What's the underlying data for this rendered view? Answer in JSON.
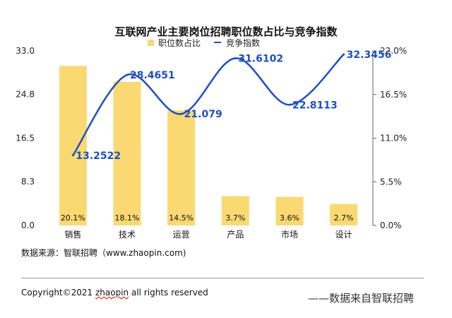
{
  "chart_data": {
    "type": "bar+line",
    "title": "互联网产业主要岗位招聘职位数占比与竞争指数",
    "categories": [
      "销售",
      "技术",
      "运营",
      "产品",
      "市场",
      "设计"
    ],
    "series": [
      {
        "name": "职位数占比",
        "type": "bar",
        "axis": "right",
        "values": [
          20.1,
          18.1,
          14.5,
          3.7,
          3.6,
          2.7
        ],
        "labels": [
          "20.1%",
          "18.1%",
          "14.5%",
          "3.7%",
          "3.6%",
          "2.7%"
        ],
        "color": "#FAD973"
      },
      {
        "name": "竞争指数",
        "type": "line",
        "axis": "left",
        "smooth": true,
        "values": [
          13.2522,
          28.4651,
          21.079,
          31.6102,
          22.8113,
          32.3456
        ],
        "labels": [
          "13.2522",
          "28.4651",
          "21.079",
          "31.6102",
          "22.8113",
          "32.3456"
        ],
        "color": "#1F4FBF"
      }
    ],
    "left_axis": {
      "ylim": [
        0,
        33.0
      ],
      "ticks": [
        0.0,
        8.3,
        16.5,
        24.8,
        33.0
      ],
      "tick_labels": [
        "0.0",
        "8.3",
        "16.5",
        "24.8",
        "33.0"
      ]
    },
    "right_axis": {
      "ylim": [
        0,
        22.0
      ],
      "ticks": [
        0.0,
        5.5,
        11.0,
        16.5,
        22.0
      ],
      "tick_labels": [
        "0.0%",
        "5.5%",
        "11.0%",
        "16.5%",
        "22.0%"
      ]
    },
    "legend": {
      "position": "top-center",
      "items": [
        "职位数占比",
        "竞争指数"
      ]
    },
    "grid": false
  },
  "footer": {
    "source": "数据来源：智联招聘（www.zhaopin.com)",
    "copyright_prefix": "Copyright©2021 ",
    "copyright_brand": "zhaopin",
    "copyright_suffix": " all rights reserved",
    "right_text": "——数据来自智联招聘"
  }
}
